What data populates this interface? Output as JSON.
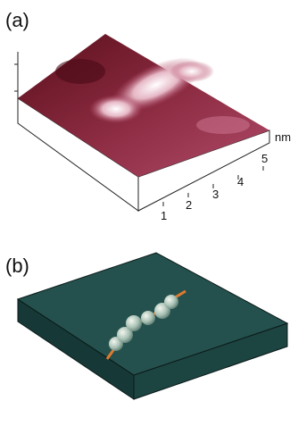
{
  "panel_a": {
    "label": "(a)",
    "axis_unit": "nm",
    "ticks": [
      "1",
      "2",
      "3",
      "4",
      "5"
    ]
  },
  "panel_b": {
    "label": "(b)"
  }
}
